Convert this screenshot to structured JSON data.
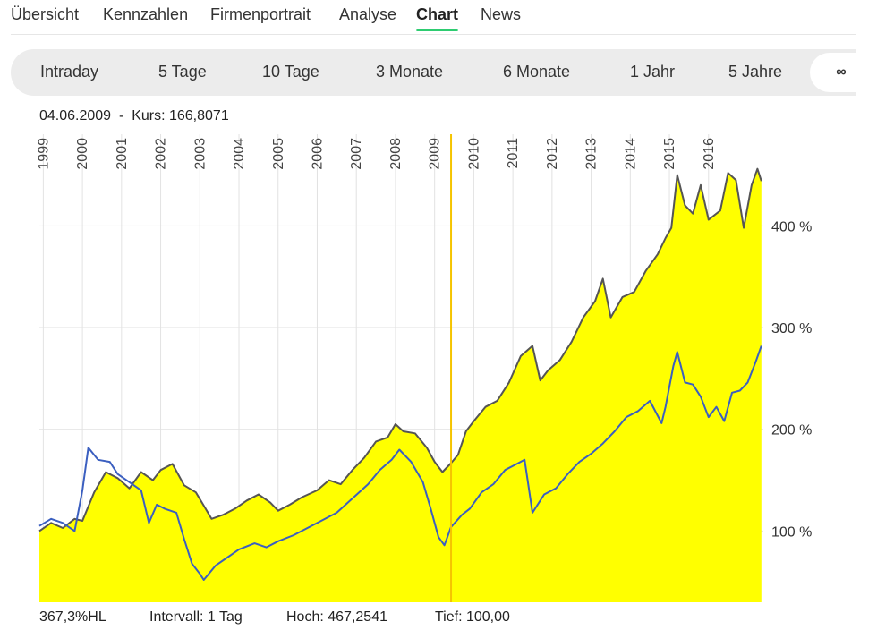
{
  "nav": {
    "tabs": [
      {
        "label": "Übersicht"
      },
      {
        "label": "Kennzahlen"
      },
      {
        "label": "Firmenportrait"
      },
      {
        "label": "Analyse"
      },
      {
        "label": "Chart",
        "active": true
      },
      {
        "label": "News"
      }
    ],
    "accent_color": "#2ecc71"
  },
  "ranges": [
    "Intraday",
    "5 Tage",
    "10 Tage",
    "3 Monate",
    "6 Monate",
    "1 Jahr",
    "5 Jahre",
    "∞"
  ],
  "info": {
    "date": "04.06.2009",
    "sep": "-",
    "kurs_label": "Kurs:",
    "kurs_value": "166,8071"
  },
  "footer": {
    "change": "367,3%HL",
    "interval_label": "Intervall:",
    "interval_value": "1 Tag",
    "high_label": "Hoch:",
    "high_value": "467,2541",
    "low_label": "Tief:",
    "low_value": "100,00"
  },
  "chart_data": {
    "type": "area",
    "x_unit": "year",
    "year_ticks": [
      "1999",
      "2000",
      "2001",
      "2002",
      "2003",
      "2004",
      "2005",
      "2006",
      "2007",
      "2008",
      "2009",
      "2010",
      "2011",
      "2012",
      "2013",
      "2014",
      "2015",
      "2016"
    ],
    "y_ticks": [
      {
        "value": 100,
        "label": "100 %"
      },
      {
        "value": 200,
        "label": "200 %"
      },
      {
        "value": 300,
        "label": "300 %"
      },
      {
        "value": 400,
        "label": "400 %"
      }
    ],
    "ylim": [
      30,
      490
    ],
    "xlim": [
      1998.9,
      2017.4
    ],
    "crosshair": {
      "x": 2009.42,
      "date": "04.06.2009",
      "value": 166.8071
    },
    "grid": true,
    "colors": {
      "area_fill": "#ffff00",
      "main_line": "#555555",
      "compare_line": "#3b5fc0",
      "crosshair": "#f5c400",
      "grid": "#e2e2e2"
    },
    "series": [
      {
        "role": "main",
        "points": [
          [
            1998.9,
            100
          ],
          [
            1999.2,
            108
          ],
          [
            1999.5,
            103
          ],
          [
            1999.8,
            112
          ],
          [
            2000.0,
            110
          ],
          [
            2000.3,
            138
          ],
          [
            2000.6,
            158
          ],
          [
            2000.9,
            152
          ],
          [
            2001.2,
            142
          ],
          [
            2001.5,
            158
          ],
          [
            2001.8,
            150
          ],
          [
            2002.0,
            160
          ],
          [
            2002.3,
            166
          ],
          [
            2002.6,
            145
          ],
          [
            2002.9,
            138
          ],
          [
            2003.1,
            125
          ],
          [
            2003.3,
            112
          ],
          [
            2003.6,
            116
          ],
          [
            2003.9,
            122
          ],
          [
            2004.2,
            130
          ],
          [
            2004.5,
            136
          ],
          [
            2004.8,
            128
          ],
          [
            2005.0,
            120
          ],
          [
            2005.3,
            126
          ],
          [
            2005.6,
            133
          ],
          [
            2006.0,
            140
          ],
          [
            2006.3,
            150
          ],
          [
            2006.6,
            146
          ],
          [
            2006.9,
            160
          ],
          [
            2007.2,
            172
          ],
          [
            2007.5,
            188
          ],
          [
            2007.8,
            192
          ],
          [
            2008.0,
            205
          ],
          [
            2008.2,
            198
          ],
          [
            2008.5,
            196
          ],
          [
            2008.8,
            182
          ],
          [
            2009.0,
            168
          ],
          [
            2009.2,
            158
          ],
          [
            2009.42,
            166.8
          ],
          [
            2009.6,
            175
          ],
          [
            2009.8,
            198
          ],
          [
            2010.0,
            208
          ],
          [
            2010.3,
            222
          ],
          [
            2010.6,
            228
          ],
          [
            2010.9,
            246
          ],
          [
            2011.2,
            272
          ],
          [
            2011.5,
            282
          ],
          [
            2011.7,
            248
          ],
          [
            2011.9,
            258
          ],
          [
            2012.2,
            268
          ],
          [
            2012.5,
            286
          ],
          [
            2012.8,
            310
          ],
          [
            2013.1,
            326
          ],
          [
            2013.3,
            348
          ],
          [
            2013.5,
            310
          ],
          [
            2013.8,
            330
          ],
          [
            2014.1,
            335
          ],
          [
            2014.4,
            356
          ],
          [
            2014.7,
            372
          ],
          [
            2014.9,
            388
          ],
          [
            2015.05,
            398
          ],
          [
            2015.2,
            450
          ],
          [
            2015.4,
            420
          ],
          [
            2015.6,
            412
          ],
          [
            2015.8,
            440
          ],
          [
            2016.0,
            406
          ],
          [
            2016.3,
            415
          ],
          [
            2016.5,
            452
          ],
          [
            2016.7,
            445
          ],
          [
            2016.9,
            398
          ],
          [
            2017.1,
            440
          ],
          [
            2017.25,
            456
          ],
          [
            2017.35,
            444
          ]
        ]
      },
      {
        "role": "compare",
        "points": [
          [
            1998.9,
            105
          ],
          [
            1999.2,
            112
          ],
          [
            1999.5,
            108
          ],
          [
            1999.8,
            100
          ],
          [
            2000.0,
            140
          ],
          [
            2000.15,
            182
          ],
          [
            2000.4,
            170
          ],
          [
            2000.7,
            168
          ],
          [
            2000.9,
            156
          ],
          [
            2001.2,
            148
          ],
          [
            2001.5,
            140
          ],
          [
            2001.7,
            108
          ],
          [
            2001.9,
            126
          ],
          [
            2002.1,
            122
          ],
          [
            2002.4,
            118
          ],
          [
            2002.6,
            92
          ],
          [
            2002.8,
            68
          ],
          [
            2003.0,
            58
          ],
          [
            2003.1,
            52
          ],
          [
            2003.4,
            66
          ],
          [
            2003.7,
            74
          ],
          [
            2004.0,
            82
          ],
          [
            2004.4,
            88
          ],
          [
            2004.7,
            84
          ],
          [
            2005.0,
            90
          ],
          [
            2005.4,
            96
          ],
          [
            2005.8,
            104
          ],
          [
            2006.2,
            112
          ],
          [
            2006.5,
            118
          ],
          [
            2006.9,
            132
          ],
          [
            2007.3,
            146
          ],
          [
            2007.6,
            160
          ],
          [
            2007.9,
            170
          ],
          [
            2008.1,
            180
          ],
          [
            2008.4,
            168
          ],
          [
            2008.7,
            148
          ],
          [
            2008.9,
            122
          ],
          [
            2009.1,
            94
          ],
          [
            2009.25,
            86
          ],
          [
            2009.42,
            104
          ],
          [
            2009.7,
            116
          ],
          [
            2009.9,
            122
          ],
          [
            2010.2,
            138
          ],
          [
            2010.5,
            146
          ],
          [
            2010.8,
            160
          ],
          [
            2011.1,
            166
          ],
          [
            2011.3,
            170
          ],
          [
            2011.5,
            118
          ],
          [
            2011.8,
            136
          ],
          [
            2012.1,
            142
          ],
          [
            2012.4,
            156
          ],
          [
            2012.7,
            168
          ],
          [
            2013.0,
            176
          ],
          [
            2013.3,
            186
          ],
          [
            2013.6,
            198
          ],
          [
            2013.9,
            212
          ],
          [
            2014.2,
            218
          ],
          [
            2014.5,
            228
          ],
          [
            2014.8,
            206
          ],
          [
            2014.9,
            222
          ],
          [
            2015.1,
            262
          ],
          [
            2015.2,
            276
          ],
          [
            2015.4,
            246
          ],
          [
            2015.6,
            244
          ],
          [
            2015.8,
            232
          ],
          [
            2016.0,
            212
          ],
          [
            2016.2,
            222
          ],
          [
            2016.4,
            208
          ],
          [
            2016.6,
            236
          ],
          [
            2016.8,
            238
          ],
          [
            2017.0,
            246
          ],
          [
            2017.2,
            266
          ],
          [
            2017.35,
            282
          ]
        ]
      }
    ]
  }
}
